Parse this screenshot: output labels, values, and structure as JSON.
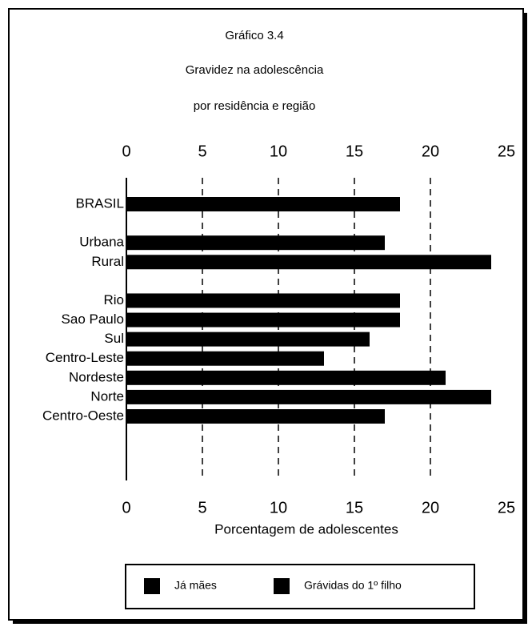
{
  "chart_data": {
    "type": "bar",
    "orientation": "horizontal",
    "title": "Gráfico 3.4",
    "subtitle": [
      "Gravidez na adolescência",
      "por residência e região"
    ],
    "xlabel": "Porcentagem de adolescentes",
    "categories": [
      "BRASIL",
      null,
      "Urbana",
      "Rural",
      null,
      "Rio",
      "Sao Paulo",
      "Sul",
      "Centro-Leste",
      "Nordeste",
      "Norte",
      "Centro-Oeste"
    ],
    "values": [
      18,
      null,
      17,
      24,
      null,
      18,
      18,
      16,
      13,
      21,
      24,
      17
    ],
    "color": "#000000",
    "legend": [
      "Já mães",
      "Grávidas do 1º filho"
    ],
    "xlim": [
      0,
      25
    ],
    "xticks": [
      0,
      5,
      10,
      15,
      20,
      25
    ],
    "grid": true
  }
}
